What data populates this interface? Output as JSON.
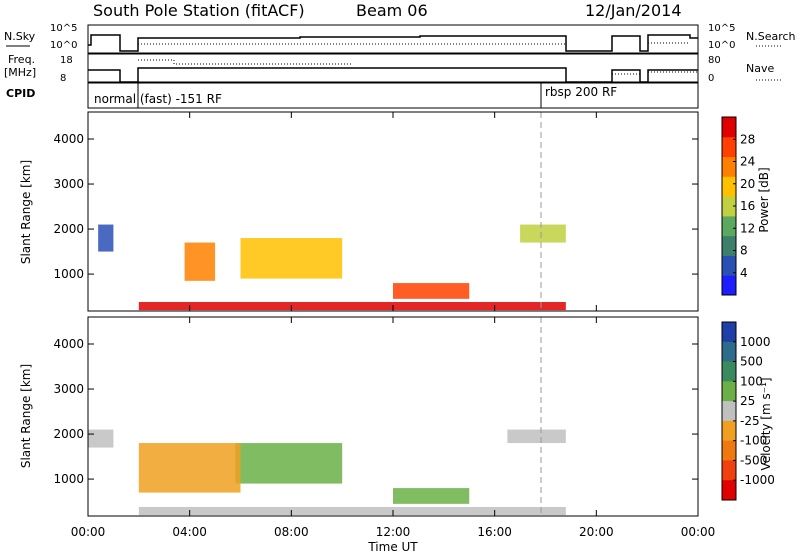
{
  "header": {
    "station": "South Pole Station (fitACF)",
    "beam": "Beam 06",
    "date": "12/Jan/2014"
  },
  "strips": {
    "nsky_label": "N.Sky",
    "nsky_ticks": [
      "10^5",
      "10^0"
    ],
    "nsearch_label": "N.Search",
    "nsearch_ticks": [
      "10^5",
      "10^0"
    ],
    "freq_label_1": "Freq.",
    "freq_label_2": "[MHz]",
    "freq_ticks": [
      "18",
      "8"
    ],
    "nave_label": "Nave",
    "nave_ticks": [
      "80",
      "0"
    ],
    "cpid_label": "CPID",
    "cpid_modes": [
      "normal (fast) -151 RF",
      "rbsp 200 RF"
    ]
  },
  "chart_data": [
    {
      "type": "heatmap",
      "title": "",
      "xlabel": "Time UT",
      "ylabel": "Slant Range [km]",
      "xlim": [
        0,
        24
      ],
      "ylim": [
        180,
        4600
      ],
      "x_ticks": [
        "00:00",
        "04:00",
        "08:00",
        "12:00",
        "16:00",
        "20:00",
        "00:00"
      ],
      "y_ticks": [
        "1000",
        "2000",
        "3000",
        "4000"
      ],
      "colorbar_label": "Power [dB]",
      "colorbar_ticks": [
        "4",
        "8",
        "12",
        "16",
        "20",
        "24",
        "28"
      ],
      "colorbar_range": [
        0,
        30
      ],
      "colorbar_colors": [
        "#1d1dff",
        "#2a4fb5",
        "#3d7f6a",
        "#5ca85e",
        "#c0d040",
        "#ffc000",
        "#ff8000",
        "#ff4000",
        "#e00000"
      ],
      "data_gaps_ut": [
        [
          1.0,
          2.0
        ],
        [
          18.9,
          20.6
        ]
      ],
      "echo_regions": [
        {
          "t0": 2.0,
          "t1": 18.8,
          "r0": 200,
          "r1": 380,
          "value": 29
        },
        {
          "t0": 6.0,
          "t1": 10.0,
          "r0": 900,
          "r1": 1800,
          "value": 18
        },
        {
          "t0": 12.0,
          "t1": 15.0,
          "r0": 450,
          "r1": 800,
          "value": 24
        },
        {
          "t0": 3.8,
          "t1": 5.0,
          "r0": 850,
          "r1": 1700,
          "value": 20
        },
        {
          "t0": 0.4,
          "t1": 1.0,
          "r0": 1500,
          "r1": 2100,
          "value": 5
        },
        {
          "t0": 17.0,
          "t1": 18.8,
          "r0": 1700,
          "r1": 2100,
          "value": 14
        }
      ]
    },
    {
      "type": "heatmap",
      "title": "",
      "xlabel": "Time UT",
      "ylabel": "Slant Range [km]",
      "xlim": [
        0,
        24
      ],
      "ylim": [
        180,
        4600
      ],
      "x_ticks": [
        "00:00",
        "04:00",
        "08:00",
        "12:00",
        "16:00",
        "20:00",
        "00:00"
      ],
      "y_ticks": [
        "1000",
        "2000",
        "3000",
        "4000"
      ],
      "colorbar_label": "Velocity [m s⁻¹]",
      "colorbar_ticks": [
        "1000",
        "500",
        "100",
        "25",
        "-25",
        "-100",
        "-500",
        "-1000"
      ],
      "colorbar_range": [
        -1000,
        1000
      ],
      "colorbar_colors": [
        "#1f3fa8",
        "#2d6c8a",
        "#3a8a60",
        "#6ab046",
        "#c0c0c0",
        "#f0a020",
        "#f07810",
        "#f04010",
        "#e00000"
      ],
      "data_gaps_ut": [
        [
          1.0,
          2.0
        ],
        [
          18.9,
          20.6
        ]
      ],
      "echo_regions": [
        {
          "t0": 2.0,
          "t1": 18.8,
          "r0": 200,
          "r1": 380,
          "value": 0
        },
        {
          "t0": 5.8,
          "t1": 10.0,
          "r0": 900,
          "r1": 1800,
          "value": 150
        },
        {
          "t0": 12.0,
          "t1": 15.0,
          "r0": 450,
          "r1": 800,
          "value": 200
        },
        {
          "t0": 2.0,
          "t1": 6.0,
          "r0": 700,
          "r1": 1800,
          "value": -300
        },
        {
          "t0": 0.0,
          "t1": 1.0,
          "r0": 1700,
          "r1": 2100,
          "value": 0
        },
        {
          "t0": 16.5,
          "t1": 18.8,
          "r0": 1800,
          "r1": 2100,
          "value": 0
        }
      ]
    }
  ]
}
